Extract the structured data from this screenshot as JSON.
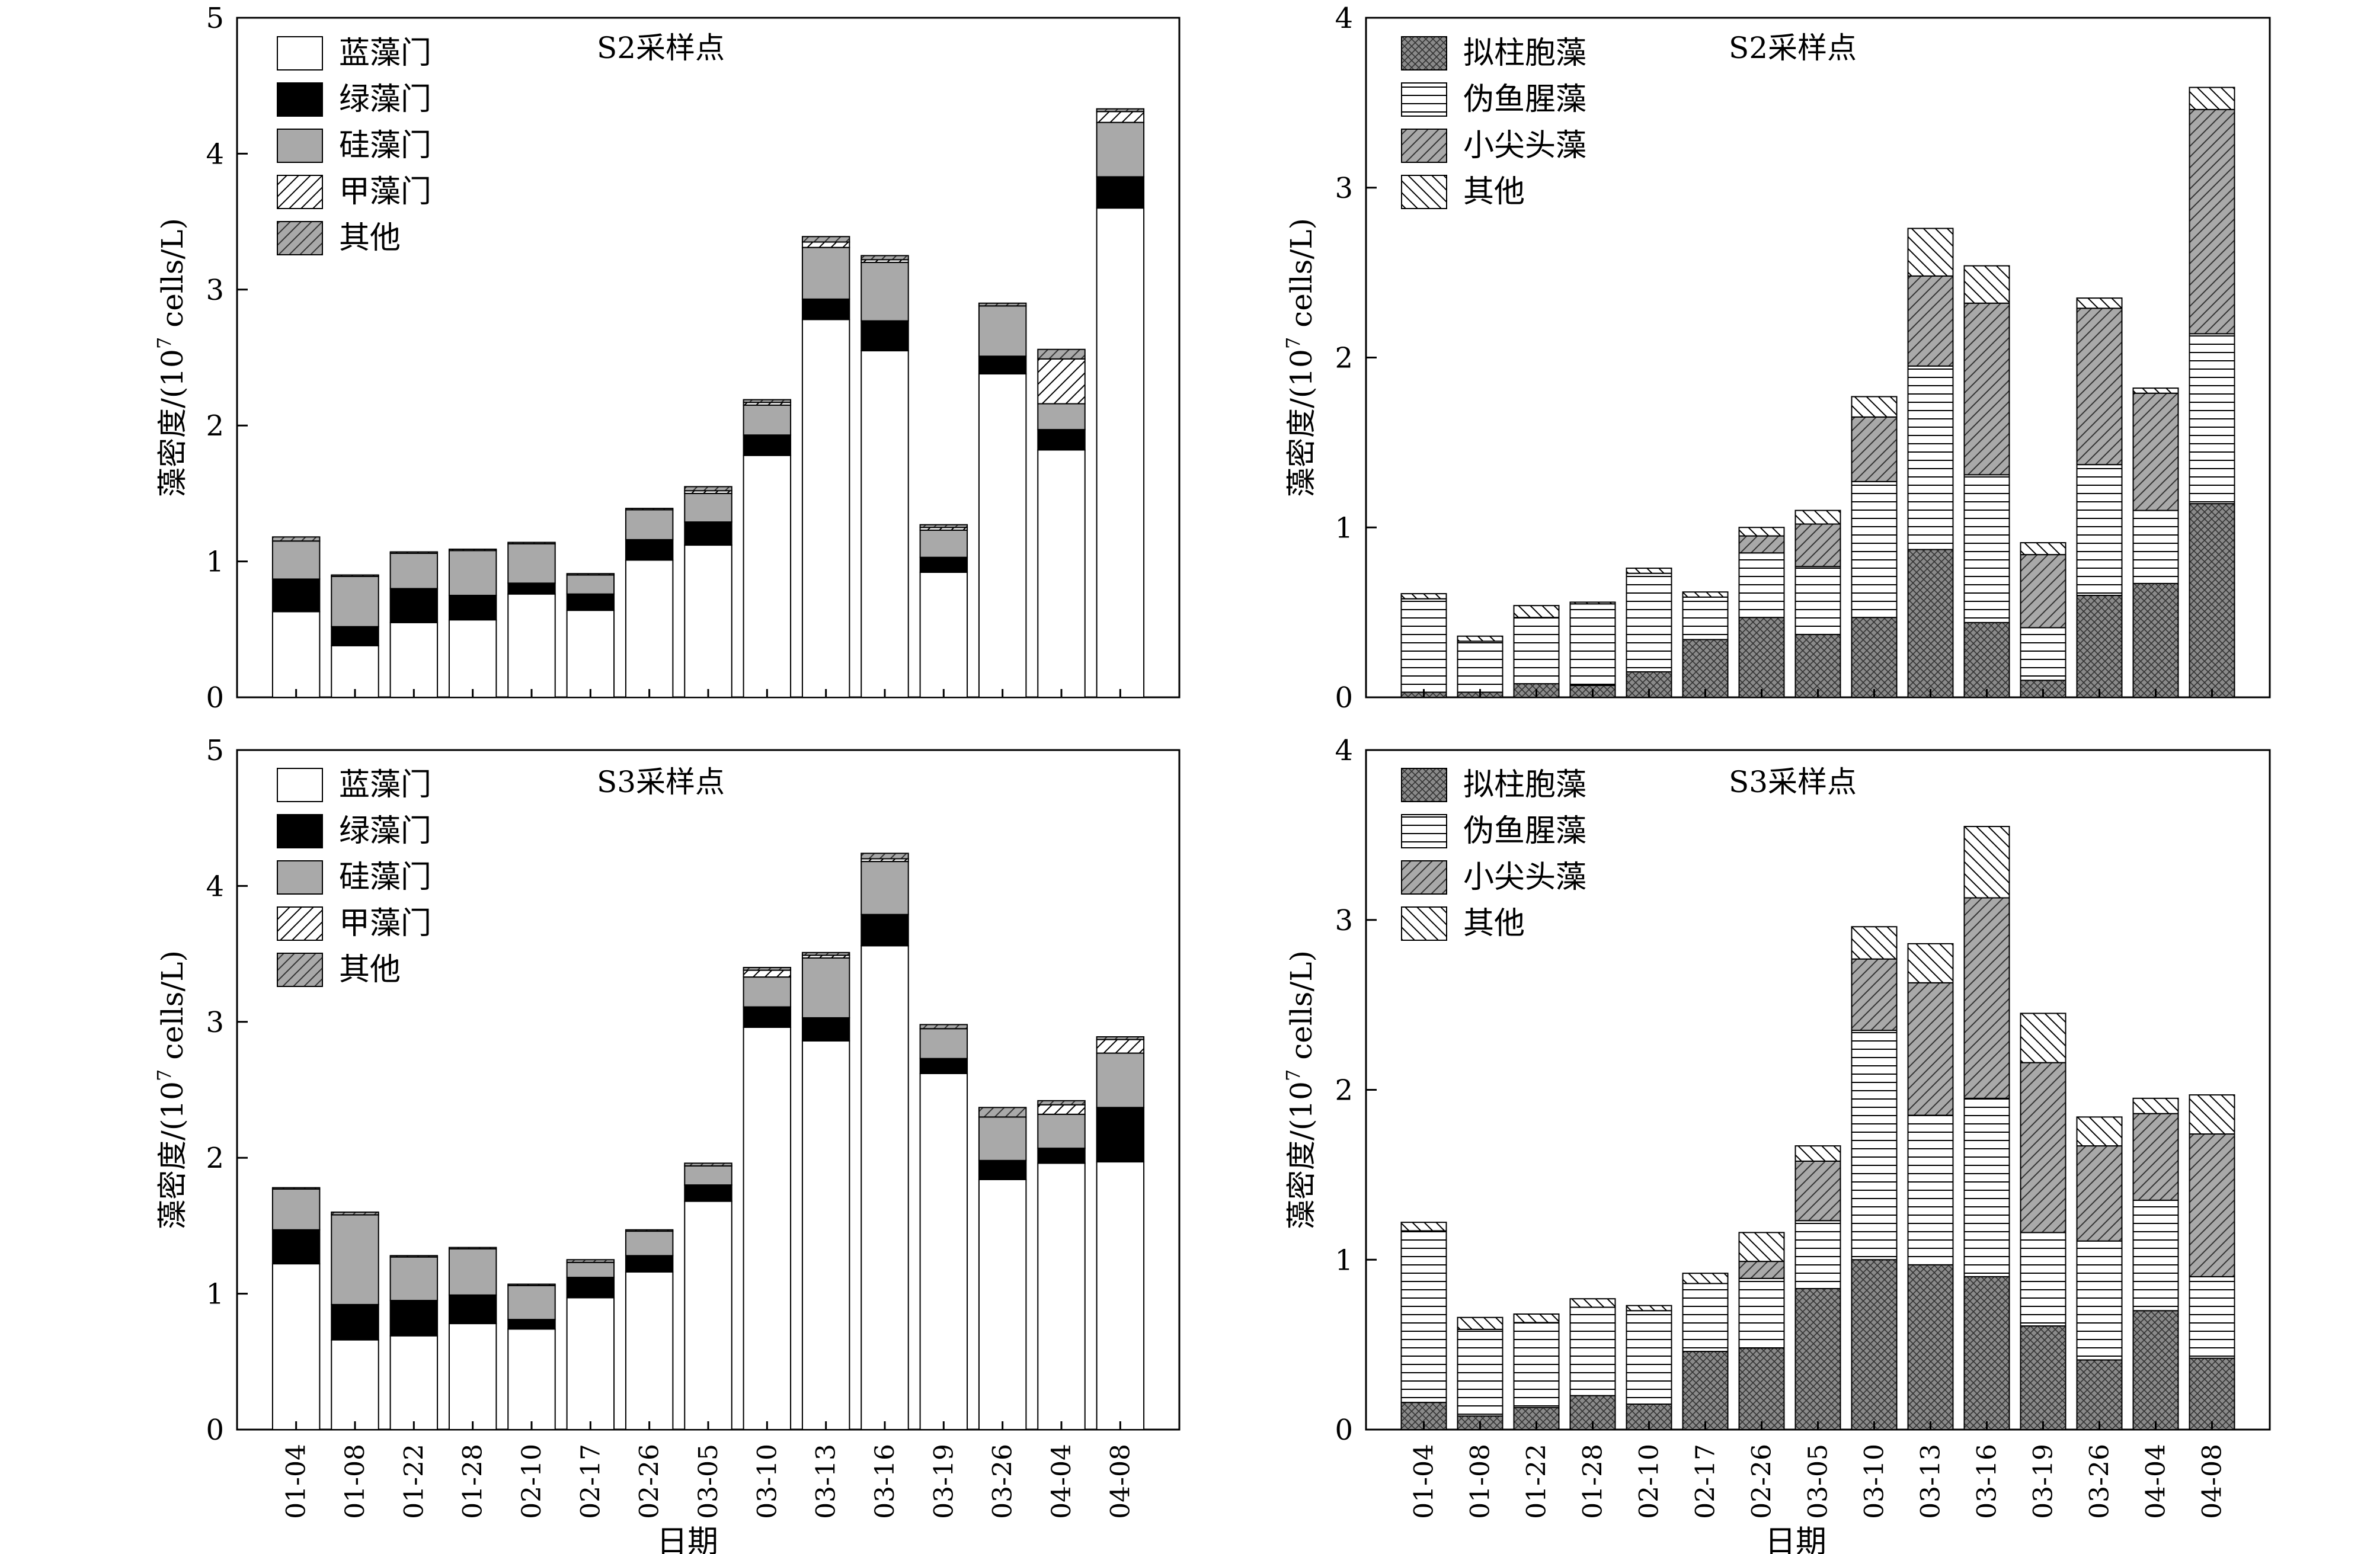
{
  "shared": {
    "dates": [
      "01-04",
      "01-08",
      "01-22",
      "01-28",
      "02-10",
      "02-17",
      "02-26",
      "03-05",
      "03-10",
      "03-13",
      "03-16",
      "03-19",
      "03-26",
      "04-04",
      "04-08"
    ],
    "xlabel": "日期",
    "ylabel_main": "藻密度/(10",
    "ylabel_sup": "7",
    "ylabel_tail": " cells/L)"
  },
  "chart_data": [
    {
      "type": "bar",
      "stacked": true,
      "title": "S2采样点",
      "xlabel": "",
      "ylabel": "藻密度/(10⁷ cells/L)",
      "ylim": [
        0,
        5
      ],
      "yticks": [
        "0",
        "1",
        "2",
        "3",
        "4",
        "5"
      ],
      "categories": [
        "01-04",
        "01-08",
        "01-22",
        "01-28",
        "02-10",
        "02-17",
        "02-26",
        "03-05",
        "03-10",
        "03-13",
        "03-16",
        "03-19",
        "03-26",
        "04-04",
        "04-08"
      ],
      "legend_position": "top-left",
      "series": [
        {
          "name": "蓝藻门",
          "pattern": "white",
          "values": [
            0.63,
            0.38,
            0.55,
            0.57,
            0.76,
            0.64,
            1.01,
            1.12,
            1.78,
            2.78,
            2.55,
            0.92,
            2.38,
            1.82,
            3.6
          ]
        },
        {
          "name": "绿藻门",
          "pattern": "black",
          "values": [
            0.24,
            0.14,
            0.25,
            0.18,
            0.08,
            0.12,
            0.15,
            0.17,
            0.15,
            0.15,
            0.22,
            0.11,
            0.13,
            0.15,
            0.23
          ]
        },
        {
          "name": "硅藻门",
          "pattern": "gray",
          "values": [
            0.28,
            0.37,
            0.26,
            0.33,
            0.29,
            0.14,
            0.22,
            0.21,
            0.22,
            0.38,
            0.43,
            0.2,
            0.37,
            0.19,
            0.4
          ]
        },
        {
          "name": "甲藻门",
          "pattern": "diag",
          "values": [
            0,
            0,
            0,
            0,
            0,
            0,
            0,
            0.02,
            0.02,
            0.04,
            0.02,
            0.02,
            0,
            0.33,
            0.08
          ]
        },
        {
          "name": "其他",
          "pattern": "graydiag",
          "values": [
            0.03,
            0.01,
            0.01,
            0.01,
            0.01,
            0.01,
            0.01,
            0.03,
            0.02,
            0.04,
            0.03,
            0.02,
            0.02,
            0.07,
            0.02
          ]
        }
      ]
    },
    {
      "type": "bar",
      "stacked": true,
      "title": "S2采样点",
      "xlabel": "",
      "ylabel": "藻密度/(10⁷ cells/L)",
      "ylim": [
        0,
        4
      ],
      "yticks": [
        "0",
        "1",
        "2",
        "3",
        "4"
      ],
      "categories": [
        "01-04",
        "01-08",
        "01-22",
        "01-28",
        "02-10",
        "02-17",
        "02-26",
        "03-05",
        "03-10",
        "03-13",
        "03-16",
        "03-19",
        "03-26",
        "04-04",
        "04-08"
      ],
      "legend_position": "top-left",
      "series": [
        {
          "name": "拟柱胞藻",
          "pattern": "cross",
          "values": [
            0.03,
            0.03,
            0.08,
            0.07,
            0.15,
            0.34,
            0.47,
            0.37,
            0.47,
            0.87,
            0.44,
            0.1,
            0.6,
            0.67,
            1.14
          ]
        },
        {
          "name": "伪鱼腥藻",
          "pattern": "hlines",
          "values": [
            0.55,
            0.3,
            0.39,
            0.48,
            0.58,
            0.25,
            0.38,
            0.4,
            0.8,
            1.08,
            0.87,
            0.31,
            0.77,
            0.43,
            1.0
          ]
        },
        {
          "name": "小尖头藻",
          "pattern": "graydiag",
          "values": [
            0,
            0,
            0,
            0,
            0,
            0,
            0.1,
            0.25,
            0.38,
            0.53,
            1.01,
            0.43,
            0.92,
            0.69,
            1.32
          ]
        },
        {
          "name": "其他",
          "pattern": "backdiag",
          "values": [
            0.03,
            0.03,
            0.07,
            0.01,
            0.03,
            0.03,
            0.05,
            0.08,
            0.12,
            0.28,
            0.22,
            0.07,
            0.06,
            0.03,
            0.13
          ]
        }
      ]
    },
    {
      "type": "bar",
      "stacked": true,
      "title": "S3采样点",
      "xlabel": "日期",
      "ylabel": "藻密度/(10⁷ cells/L)",
      "ylim": [
        0,
        5
      ],
      "yticks": [
        "0",
        "1",
        "2",
        "3",
        "4",
        "5"
      ],
      "categories": [
        "01-04",
        "01-08",
        "01-22",
        "01-28",
        "02-10",
        "02-17",
        "02-26",
        "03-05",
        "03-10",
        "03-13",
        "03-16",
        "03-19",
        "03-26",
        "04-04",
        "04-08"
      ],
      "legend_position": "top-left",
      "series": [
        {
          "name": "蓝藻门",
          "pattern": "white",
          "values": [
            1.22,
            0.66,
            0.69,
            0.78,
            0.74,
            0.97,
            1.16,
            1.68,
            2.96,
            2.86,
            3.56,
            2.62,
            1.84,
            1.96,
            1.97
          ]
        },
        {
          "name": "绿藻门",
          "pattern": "black",
          "values": [
            0.25,
            0.26,
            0.26,
            0.21,
            0.07,
            0.15,
            0.12,
            0.12,
            0.15,
            0.17,
            0.23,
            0.11,
            0.14,
            0.11,
            0.4
          ]
        },
        {
          "name": "硅藻门",
          "pattern": "gray",
          "values": [
            0.3,
            0.66,
            0.32,
            0.34,
            0.25,
            0.11,
            0.18,
            0.14,
            0.22,
            0.44,
            0.39,
            0.22,
            0.32,
            0.25,
            0.4
          ]
        },
        {
          "name": "甲藻门",
          "pattern": "diag",
          "values": [
            0,
            0,
            0,
            0,
            0,
            0,
            0,
            0,
            0.05,
            0.02,
            0.02,
            0,
            0,
            0.07,
            0.1
          ]
        },
        {
          "name": "其他",
          "pattern": "graydiag",
          "values": [
            0.01,
            0.02,
            0.01,
            0.01,
            0.01,
            0.02,
            0.01,
            0.02,
            0.02,
            0.02,
            0.04,
            0.03,
            0.07,
            0.03,
            0.02
          ]
        }
      ]
    },
    {
      "type": "bar",
      "stacked": true,
      "title": "S3采样点",
      "xlabel": "日期",
      "ylabel": "藻密度/(10⁷ cells/L)",
      "ylim": [
        0,
        4
      ],
      "yticks": [
        "0",
        "1",
        "2",
        "3",
        "4"
      ],
      "categories": [
        "01-04",
        "01-08",
        "01-22",
        "01-28",
        "02-10",
        "02-17",
        "02-26",
        "03-05",
        "03-10",
        "03-13",
        "03-16",
        "03-19",
        "03-26",
        "04-04",
        "04-08"
      ],
      "legend_position": "top-left",
      "series": [
        {
          "name": "拟柱胞藻",
          "pattern": "cross",
          "values": [
            0.16,
            0.08,
            0.13,
            0.2,
            0.15,
            0.46,
            0.48,
            0.83,
            1.0,
            0.97,
            0.9,
            0.61,
            0.41,
            0.7,
            0.42
          ]
        },
        {
          "name": "伪鱼腥藻",
          "pattern": "hlines",
          "values": [
            1.01,
            0.51,
            0.5,
            0.52,
            0.55,
            0.4,
            0.41,
            0.4,
            1.35,
            0.88,
            1.05,
            0.55,
            0.7,
            0.65,
            0.48
          ]
        },
        {
          "name": "小尖头藻",
          "pattern": "graydiag",
          "values": [
            0,
            0,
            0,
            0,
            0,
            0,
            0.1,
            0.35,
            0.42,
            0.78,
            1.18,
            1.0,
            0.56,
            0.51,
            0.84
          ]
        },
        {
          "name": "其他",
          "pattern": "backdiag",
          "values": [
            0.05,
            0.07,
            0.05,
            0.05,
            0.03,
            0.06,
            0.17,
            0.09,
            0.19,
            0.23,
            0.42,
            0.29,
            0.17,
            0.09,
            0.23
          ]
        }
      ]
    }
  ]
}
